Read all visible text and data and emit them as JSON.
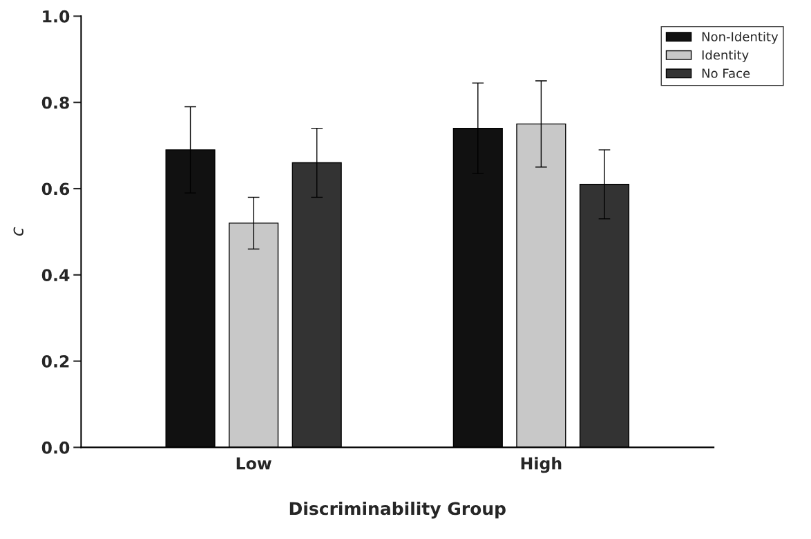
{
  "chart_data": {
    "type": "bar",
    "xlabel": "Discriminability Group",
    "ylabel": "c",
    "categories": [
      "Low",
      "High"
    ],
    "series": [
      {
        "name": "Non-Identity",
        "color": "#111111",
        "values": [
          0.69,
          0.74
        ],
        "errors": [
          0.1,
          0.105
        ]
      },
      {
        "name": "Identity",
        "color": "#c8c8c8",
        "values": [
          0.52,
          0.75
        ],
        "errors": [
          0.06,
          0.1
        ]
      },
      {
        "name": "No Face",
        "color": "#333333",
        "values": [
          0.66,
          0.61
        ],
        "errors": [
          0.08,
          0.08
        ]
      }
    ],
    "ylim": [
      0,
      1.0
    ],
    "yticks": [
      {
        "value": 0,
        "label": "0.0"
      },
      0.2,
      0.4,
      0.6,
      0.8,
      {
        "value": 1.0,
        "label": "1.0"
      }
    ],
    "grid": false,
    "legend": "top right"
  }
}
